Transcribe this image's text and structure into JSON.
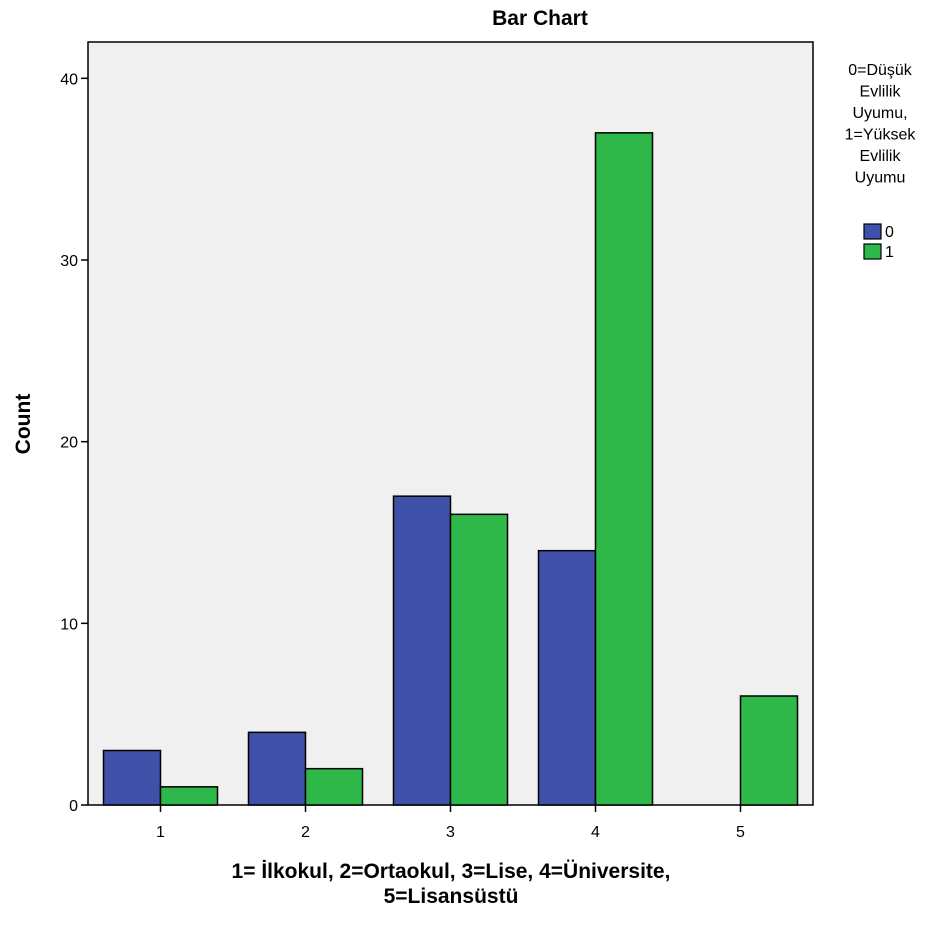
{
  "chart_data": {
    "type": "bar",
    "title": "Bar Chart",
    "xlabel_line1": "1= İlkokul, 2=Ortaokul, 3=Lise, 4=Üniversite,",
    "xlabel_line2": "5=Lisansüstü",
    "ylabel": "Count",
    "categories": [
      "1",
      "2",
      "3",
      "4",
      "5"
    ],
    "series": [
      {
        "name": "0",
        "values": [
          3,
          4,
          17,
          14,
          0
        ]
      },
      {
        "name": "1",
        "values": [
          1,
          2,
          16,
          37,
          6
        ]
      }
    ],
    "ylim": [
      0,
      42
    ],
    "yticks": [
      0,
      10,
      20,
      30,
      40
    ],
    "legend": {
      "title_lines": [
        "0=Düşük",
        "Evlilik",
        "Uyumu,",
        "1=Yüksek",
        "Evlilik",
        "Uyumu"
      ],
      "placement": "right"
    },
    "colors": {
      "0": "#3f50a8",
      "1": "#2fb84a",
      "plot_background": "#f0f0f0"
    },
    "grid": false
  }
}
